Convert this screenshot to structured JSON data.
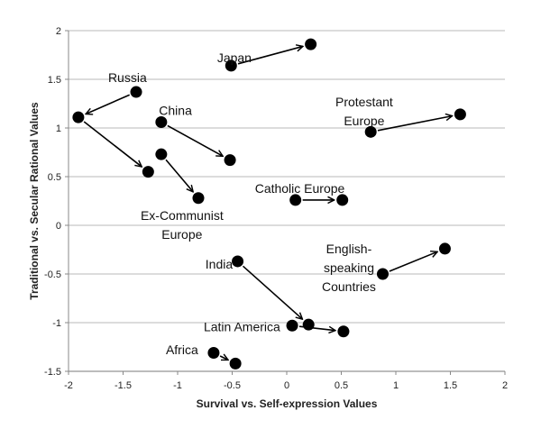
{
  "chart_data": {
    "type": "scatter",
    "xlabel": "Survival vs. Self-expression Values",
    "ylabel": "Traditional vs. Secular Rational Values",
    "xlim": [
      -2,
      2
    ],
    "ylim": [
      -1.5,
      2
    ],
    "xticks": [
      "-2",
      "-1.5",
      "-1",
      "-0.5",
      "0",
      "0.5",
      "1",
      "1.5",
      "2"
    ],
    "yticks": [
      "2",
      "1.5",
      "1",
      "0.5",
      "0",
      "-0.5",
      "-1",
      "-1.5"
    ],
    "grid": "horizontal",
    "marker_color": "#000000",
    "groups": [
      {
        "label": [
          "Japan"
        ],
        "points": [
          [
            -0.51,
            1.64
          ],
          [
            0.22,
            1.86
          ]
        ]
      },
      {
        "label": [
          "Russia"
        ],
        "points": [
          [
            -1.38,
            1.37
          ],
          [
            -1.91,
            1.11
          ],
          [
            -1.27,
            0.55
          ]
        ]
      },
      {
        "label": [
          "China"
        ],
        "points": [
          [
            -1.15,
            1.06
          ],
          [
            -0.52,
            0.67
          ]
        ]
      },
      {
        "label": [
          "Ex-Communist",
          "Europe"
        ],
        "points": [
          [
            -1.15,
            0.73
          ],
          [
            -0.81,
            0.28
          ]
        ]
      },
      {
        "label": [
          "Catholic Europe"
        ],
        "points": [
          [
            0.08,
            0.26
          ],
          [
            0.51,
            0.26
          ]
        ]
      },
      {
        "label": [
          "Protestant",
          "Europe"
        ],
        "points": [
          [
            0.77,
            0.96
          ],
          [
            1.59,
            1.14
          ]
        ]
      },
      {
        "label": [
          "English-",
          "speaking",
          "Countries"
        ],
        "points": [
          [
            0.88,
            -0.5
          ],
          [
            1.45,
            -0.24
          ]
        ]
      },
      {
        "label": [
          "India"
        ],
        "points": [
          [
            -0.45,
            -0.37
          ],
          [
            0.2,
            -1.02
          ]
        ]
      },
      {
        "label": [
          "Latin America"
        ],
        "points": [
          [
            0.05,
            -1.03
          ],
          [
            0.52,
            -1.09
          ]
        ]
      },
      {
        "label": [
          "Africa"
        ],
        "points": [
          [
            -0.67,
            -1.31
          ],
          [
            -0.47,
            -1.42
          ]
        ]
      }
    ]
  }
}
